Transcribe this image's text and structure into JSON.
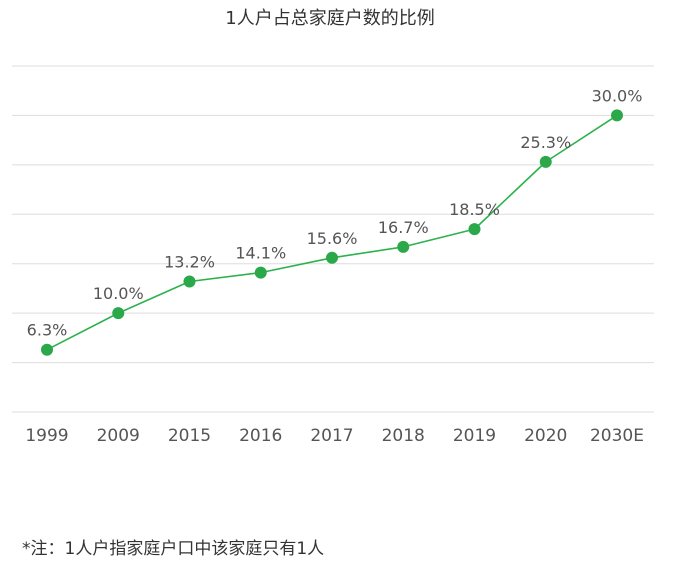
{
  "chart_data": {
    "type": "line",
    "title": "1人户占总家庭户数的比例",
    "categories": [
      "1999",
      "2009",
      "2015",
      "2016",
      "2017",
      "2018",
      "2019",
      "2020",
      "2030E"
    ],
    "series": [
      {
        "name": "1人户占总家庭户数的比例",
        "values": [
          6.3,
          10.0,
          13.2,
          14.1,
          15.6,
          16.7,
          18.5,
          25.3,
          30.0
        ],
        "labels": [
          "6.3%",
          "10.0%",
          "13.2%",
          "14.1%",
          "15.6%",
          "16.7%",
          "18.5%",
          "25.3%",
          "30.0%"
        ]
      }
    ],
    "xlabel": "",
    "ylabel": "",
    "ylim": [
      0,
      35
    ],
    "grid": true,
    "y_tick_labels_shown": false,
    "legend": "none"
  },
  "colors": {
    "line": "#2bb24c",
    "marker": "#2ba84a",
    "grid": "#dddddd",
    "text": "#555555",
    "title": "#333333"
  },
  "footnote": "*注：1人户指家庭户口中该家庭只有1人"
}
